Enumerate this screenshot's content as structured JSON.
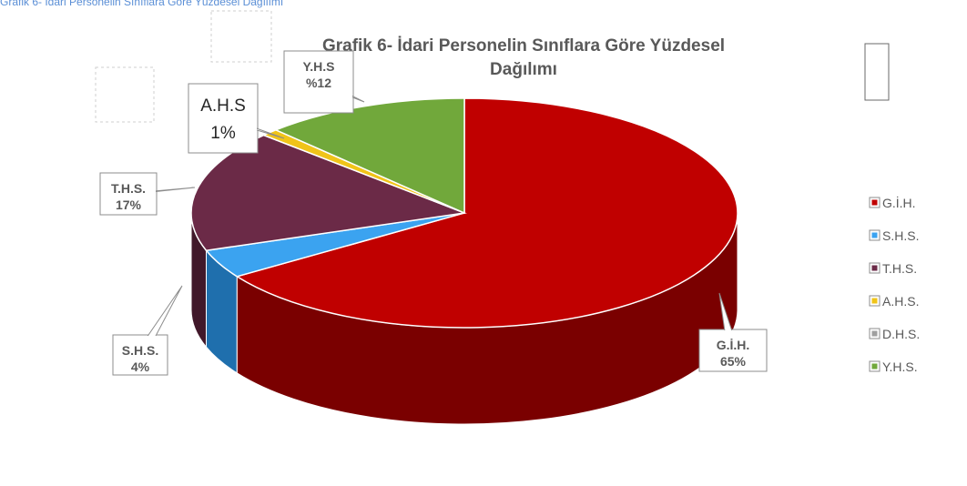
{
  "caption_fragment": "Grafik 6- İdari Personelin Sınıflara Göre Yüzdesel Dağılımı",
  "chart_data": {
    "type": "pie",
    "title_line1": "Grafik 6- İdari Personelin Sınıflara Göre Yüzdesel",
    "title_line2": "Dağılımı",
    "slices": [
      {
        "name": "G.İ.H.",
        "value": 65,
        "color": "#c00000",
        "side_color": "#7a0000",
        "label_name": "G.İ.H.",
        "label_value": "65%"
      },
      {
        "name": "S.H.S.",
        "value": 4,
        "color": "#3ba3f0",
        "side_color": "#1f6fad",
        "label_name": "S.H.S.",
        "label_value": "4%"
      },
      {
        "name": "T.H.S.",
        "value": 17,
        "color": "#6b2a47",
        "side_color": "#41182a",
        "label_name": "T.H.S.",
        "label_value": "17%"
      },
      {
        "name": "A.H.S",
        "value": 1,
        "color": "#f0c419",
        "side_color": "#a88408",
        "label_name": "A.H.S",
        "label_value": "1%"
      },
      {
        "name": "Y.H.S",
        "value": 12,
        "color": "#71a83b",
        "side_color": "#4a7325",
        "label_name": "Y.H.S",
        "label_value": "%12"
      }
    ],
    "legend": {
      "placement": "right",
      "entries": [
        "G.İ.H.",
        "S.H.S.",
        "T.H.S.",
        "A.H.S.",
        "D.H.S.",
        "Y.H.S."
      ]
    }
  }
}
